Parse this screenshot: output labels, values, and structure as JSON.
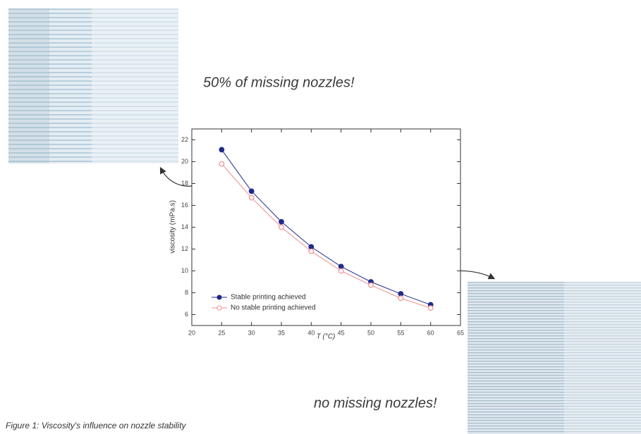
{
  "chart_data": {
    "type": "line",
    "x": [
      25,
      30,
      35,
      40,
      45,
      50,
      55,
      60
    ],
    "series": [
      {
        "name": "Stable printing achieved",
        "color": "#1f2a8a",
        "values": [
          21.1,
          17.3,
          14.5,
          12.2,
          10.4,
          9.0,
          7.9,
          6.9
        ]
      },
      {
        "name": "No stable printing achieved",
        "color": "#f08c8c",
        "values": [
          19.8,
          16.7,
          14.0,
          11.8,
          10.0,
          8.7,
          7.5,
          6.6
        ]
      }
    ],
    "xlabel": "T (°C)",
    "ylabel": "viscosity (mPa.s)",
    "xlim": [
      20,
      65
    ],
    "xticks": [
      20,
      25,
      30,
      35,
      40,
      45,
      50,
      55,
      60,
      65
    ],
    "ylim": [
      5,
      23
    ],
    "yticks": [
      6,
      8,
      10,
      12,
      14,
      16,
      18,
      20,
      22
    ],
    "legend": "lower left",
    "annotations": [
      "50% of missing nozzles!",
      "no missing nozzles!"
    ],
    "caption": "Figure 1: Viscosity's influence on nozzle stability"
  }
}
